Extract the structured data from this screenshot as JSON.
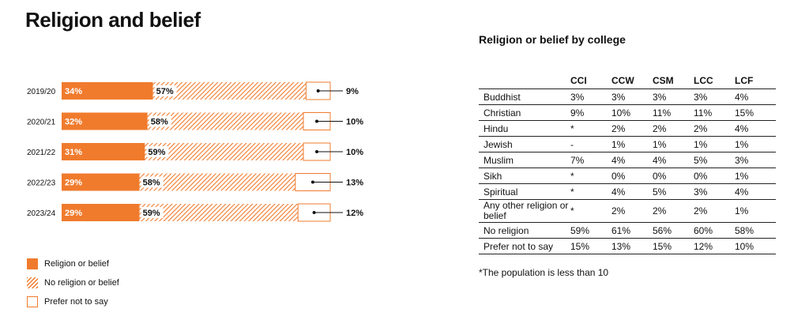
{
  "page": {
    "title": "Religion and belief"
  },
  "chart_data": {
    "type": "bar",
    "orientation": "horizontal",
    "stacked": true,
    "percent": true,
    "categories": [
      "2019/20",
      "2020/21",
      "2021/22",
      "2022/23",
      "2023/24"
    ],
    "series": [
      {
        "name": "Religion or belief",
        "values": [
          34,
          32,
          31,
          29,
          29
        ],
        "labels": [
          "34%",
          "32%",
          "31%",
          "29%",
          "29%"
        ],
        "color": "#f07b2d",
        "style": "solid"
      },
      {
        "name": "No religion or belief",
        "values": [
          57,
          58,
          59,
          58,
          59
        ],
        "labels": [
          "57%",
          "58%",
          "59%",
          "58%",
          "59%"
        ],
        "color": "#f07b2d",
        "style": "hatched"
      },
      {
        "name": "Prefer not to say",
        "values": [
          9,
          10,
          10,
          13,
          12
        ],
        "labels": [
          "9%",
          "10%",
          "10%",
          "13%",
          "12%"
        ],
        "color": "#ffffff",
        "style": "outline"
      }
    ],
    "legend_position": "bottom-left"
  },
  "legend": {
    "items": [
      "Religion or belief",
      "No religion or belief",
      "Prefer not to say"
    ]
  },
  "table": {
    "title": "Religion or belief by college",
    "columns": [
      "CCI",
      "CCW",
      "CSM",
      "LCC",
      "LCF"
    ],
    "rows": [
      {
        "label": "Buddhist",
        "values": [
          "3%",
          "3%",
          "3%",
          "3%",
          "4%"
        ]
      },
      {
        "label": "Christian",
        "values": [
          "9%",
          "10%",
          "11%",
          "11%",
          "15%"
        ]
      },
      {
        "label": "Hindu",
        "values": [
          "*",
          "2%",
          "2%",
          "2%",
          "4%"
        ]
      },
      {
        "label": "Jewish",
        "values": [
          "-",
          "1%",
          "1%",
          "1%",
          "1%"
        ]
      },
      {
        "label": "Muslim",
        "values": [
          "7%",
          "4%",
          "4%",
          "5%",
          "3%"
        ]
      },
      {
        "label": "Sikh",
        "values": [
          "*",
          "0%",
          "0%",
          "0%",
          "1%"
        ]
      },
      {
        "label": "Spiritual",
        "values": [
          "*",
          "4%",
          "5%",
          "3%",
          "4%"
        ]
      },
      {
        "label": "Any other religion or belief",
        "values": [
          "*",
          "2%",
          "2%",
          "2%",
          "1%"
        ]
      },
      {
        "label": "No religion",
        "values": [
          "59%",
          "61%",
          "56%",
          "60%",
          "58%"
        ]
      },
      {
        "label": "Prefer not to say",
        "values": [
          "15%",
          "13%",
          "15%",
          "12%",
          "10%"
        ]
      }
    ],
    "footnote": "*The population is less than 10"
  }
}
